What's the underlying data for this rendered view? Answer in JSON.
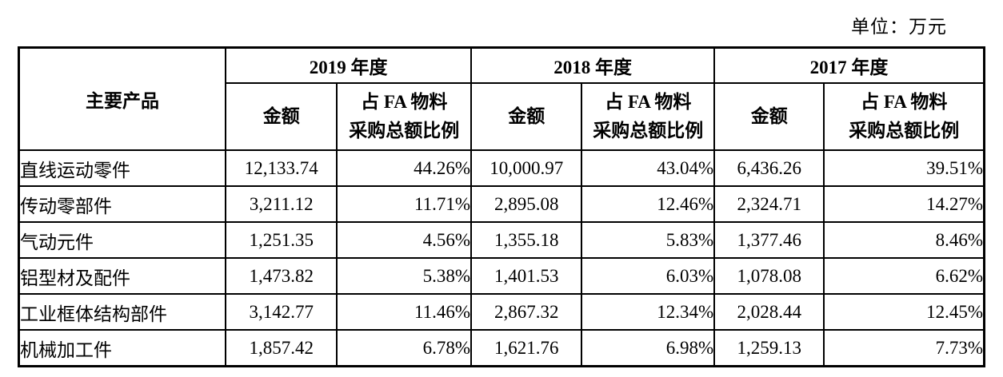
{
  "page": {
    "unit_label": "单位：万元"
  },
  "table": {
    "product_header": "主要产品",
    "year_groups": [
      {
        "year": "2019 年度"
      },
      {
        "year": "2018 年度"
      },
      {
        "year": "2017 年度"
      }
    ],
    "sub_headers": {
      "amount": "金额",
      "ratio_line1": "占 FA 物料",
      "ratio_line2": "采购总额比例"
    },
    "rows": [
      {
        "product": "直线运动零件",
        "values": [
          "12,133.74",
          "44.26%",
          "10,000.97",
          "43.04%",
          "6,436.26",
          "39.51%"
        ]
      },
      {
        "product": "传动零部件",
        "values": [
          "3,211.12",
          "11.71%",
          "2,895.08",
          "12.46%",
          "2,324.71",
          "14.27%"
        ]
      },
      {
        "product": "气动元件",
        "values": [
          "1,251.35",
          "4.56%",
          "1,355.18",
          "5.83%",
          "1,377.46",
          "8.46%"
        ]
      },
      {
        "product": "铝型材及配件",
        "values": [
          "1,473.82",
          "5.38%",
          "1,401.53",
          "6.03%",
          "1,078.08",
          "6.62%"
        ]
      },
      {
        "product": "工业框体结构部件",
        "values": [
          "3,142.77",
          "11.46%",
          "2,867.32",
          "12.34%",
          "2,028.44",
          "12.45%"
        ]
      },
      {
        "product": "机械加工件",
        "values": [
          "1,857.42",
          "6.78%",
          "1,621.76",
          "6.98%",
          "1,259.13",
          "7.73%"
        ]
      }
    ]
  }
}
